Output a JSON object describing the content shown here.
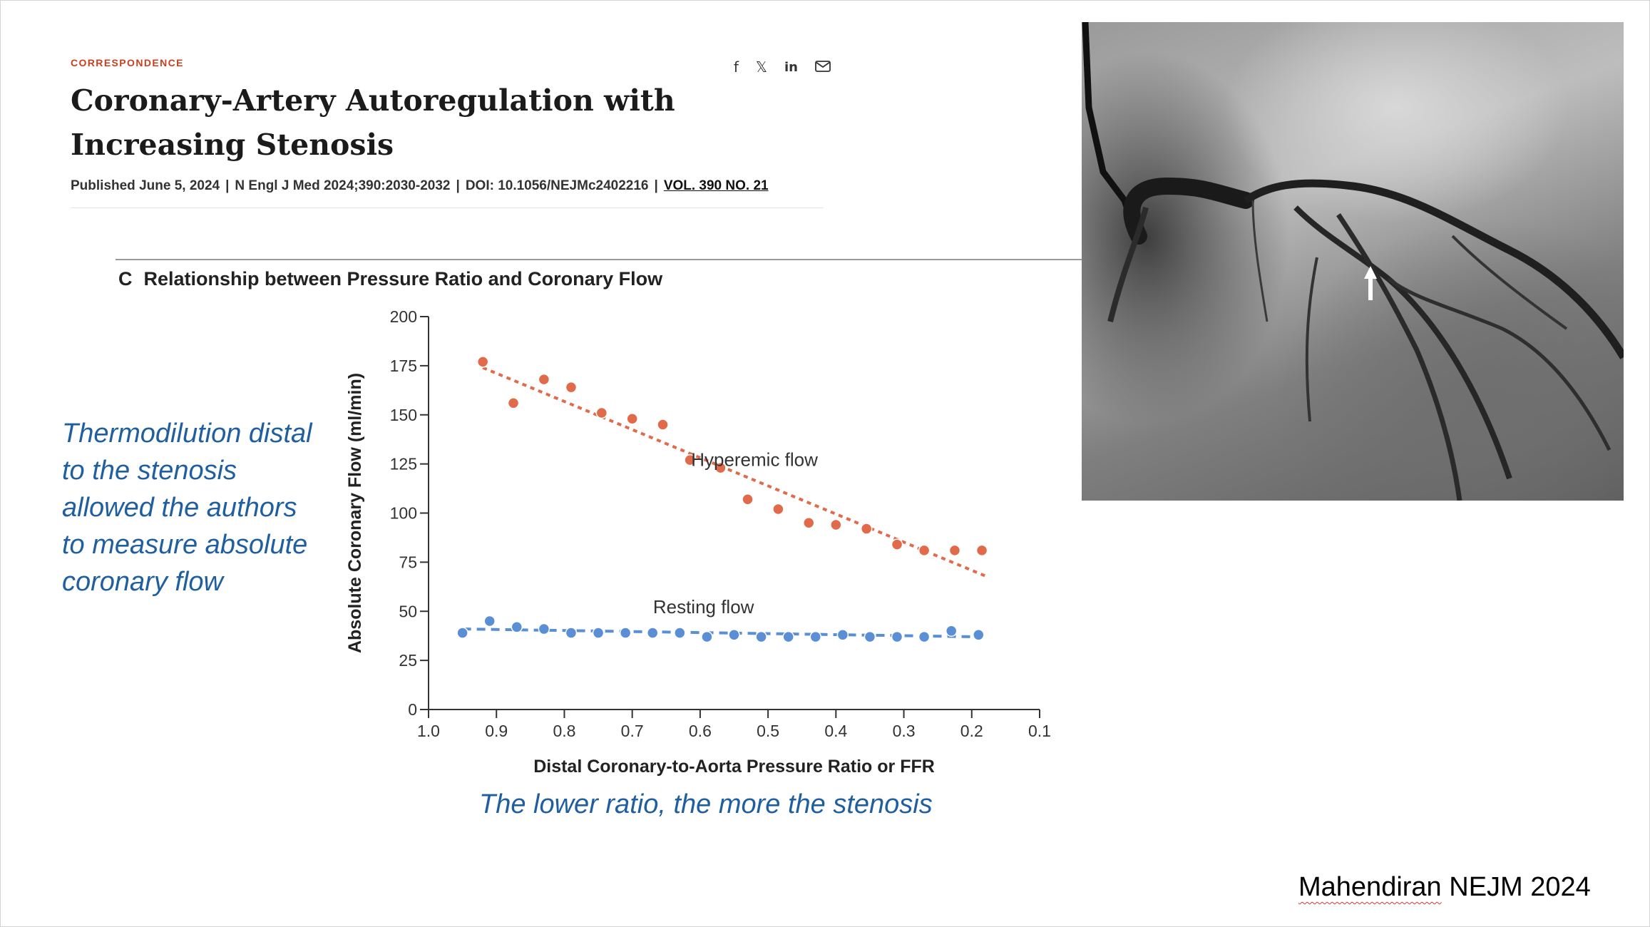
{
  "article": {
    "category": "CORRESPONDENCE",
    "title": "Coronary-Artery Autoregulation with Increasing Stenosis",
    "published": "Published June 5, 2024",
    "citation": "N Engl J Med 2024;390:2030-2032",
    "doi": "DOI: 10.1056/NEJMc2402216",
    "volume": "VOL. 390 NO. 21",
    "share_icons": [
      "facebook-icon",
      "x-icon",
      "linkedin-icon",
      "mail-icon"
    ]
  },
  "panel": {
    "letter": "C",
    "heading": "Relationship between Pressure Ratio and Coronary Flow"
  },
  "chart_data": {
    "type": "scatter",
    "xlabel": "Distal Coronary-to-Aorta Pressure Ratio or FFR",
    "ylabel": "Absolute Coronary Flow (ml/min)",
    "xlim": [
      1.0,
      0.1
    ],
    "ylim": [
      0,
      200
    ],
    "x_reversed": true,
    "x_ticks": [
      "1.0",
      "0.9",
      "0.8",
      "0.7",
      "0.6",
      "0.5",
      "0.4",
      "0.3",
      "0.2",
      "0.1"
    ],
    "y_ticks": [
      "0",
      "25",
      "50",
      "75",
      "100",
      "125",
      "150",
      "175",
      "200"
    ],
    "series": [
      {
        "name": "Hyperemic flow",
        "color": "#e06a4a",
        "x": [
          0.92,
          0.875,
          0.83,
          0.79,
          0.745,
          0.7,
          0.655,
          0.615,
          0.57,
          0.53,
          0.485,
          0.44,
          0.4,
          0.355,
          0.31,
          0.27,
          0.225,
          0.185
        ],
        "y": [
          177,
          156,
          168,
          164,
          151,
          148,
          145,
          127,
          123,
          107,
          102,
          95,
          94,
          92,
          84,
          81,
          81,
          81
        ],
        "trend": {
          "x": [
            0.92,
            0.18
          ],
          "y": [
            174,
            68
          ]
        }
      },
      {
        "name": "Resting flow",
        "color": "#5a8fd6",
        "x": [
          0.95,
          0.91,
          0.87,
          0.83,
          0.79,
          0.75,
          0.71,
          0.67,
          0.63,
          0.59,
          0.55,
          0.51,
          0.47,
          0.43,
          0.39,
          0.35,
          0.31,
          0.27,
          0.23,
          0.19
        ],
        "y": [
          39,
          45,
          42,
          41,
          39,
          39,
          39,
          39,
          39,
          37,
          38,
          37,
          37,
          37,
          38,
          37,
          37,
          37,
          40,
          38
        ],
        "trend": {
          "x": [
            0.95,
            0.19
          ],
          "y": [
            41,
            37
          ]
        }
      }
    ]
  },
  "notes": {
    "left": "Thermodilution distal to the stenosis allowed the authors to measure absolute coronary flow",
    "bottom": "The lower ratio, the more the stenosis",
    "citation_name": "Mahendiran",
    "citation_rest": " NEJM 2024"
  }
}
